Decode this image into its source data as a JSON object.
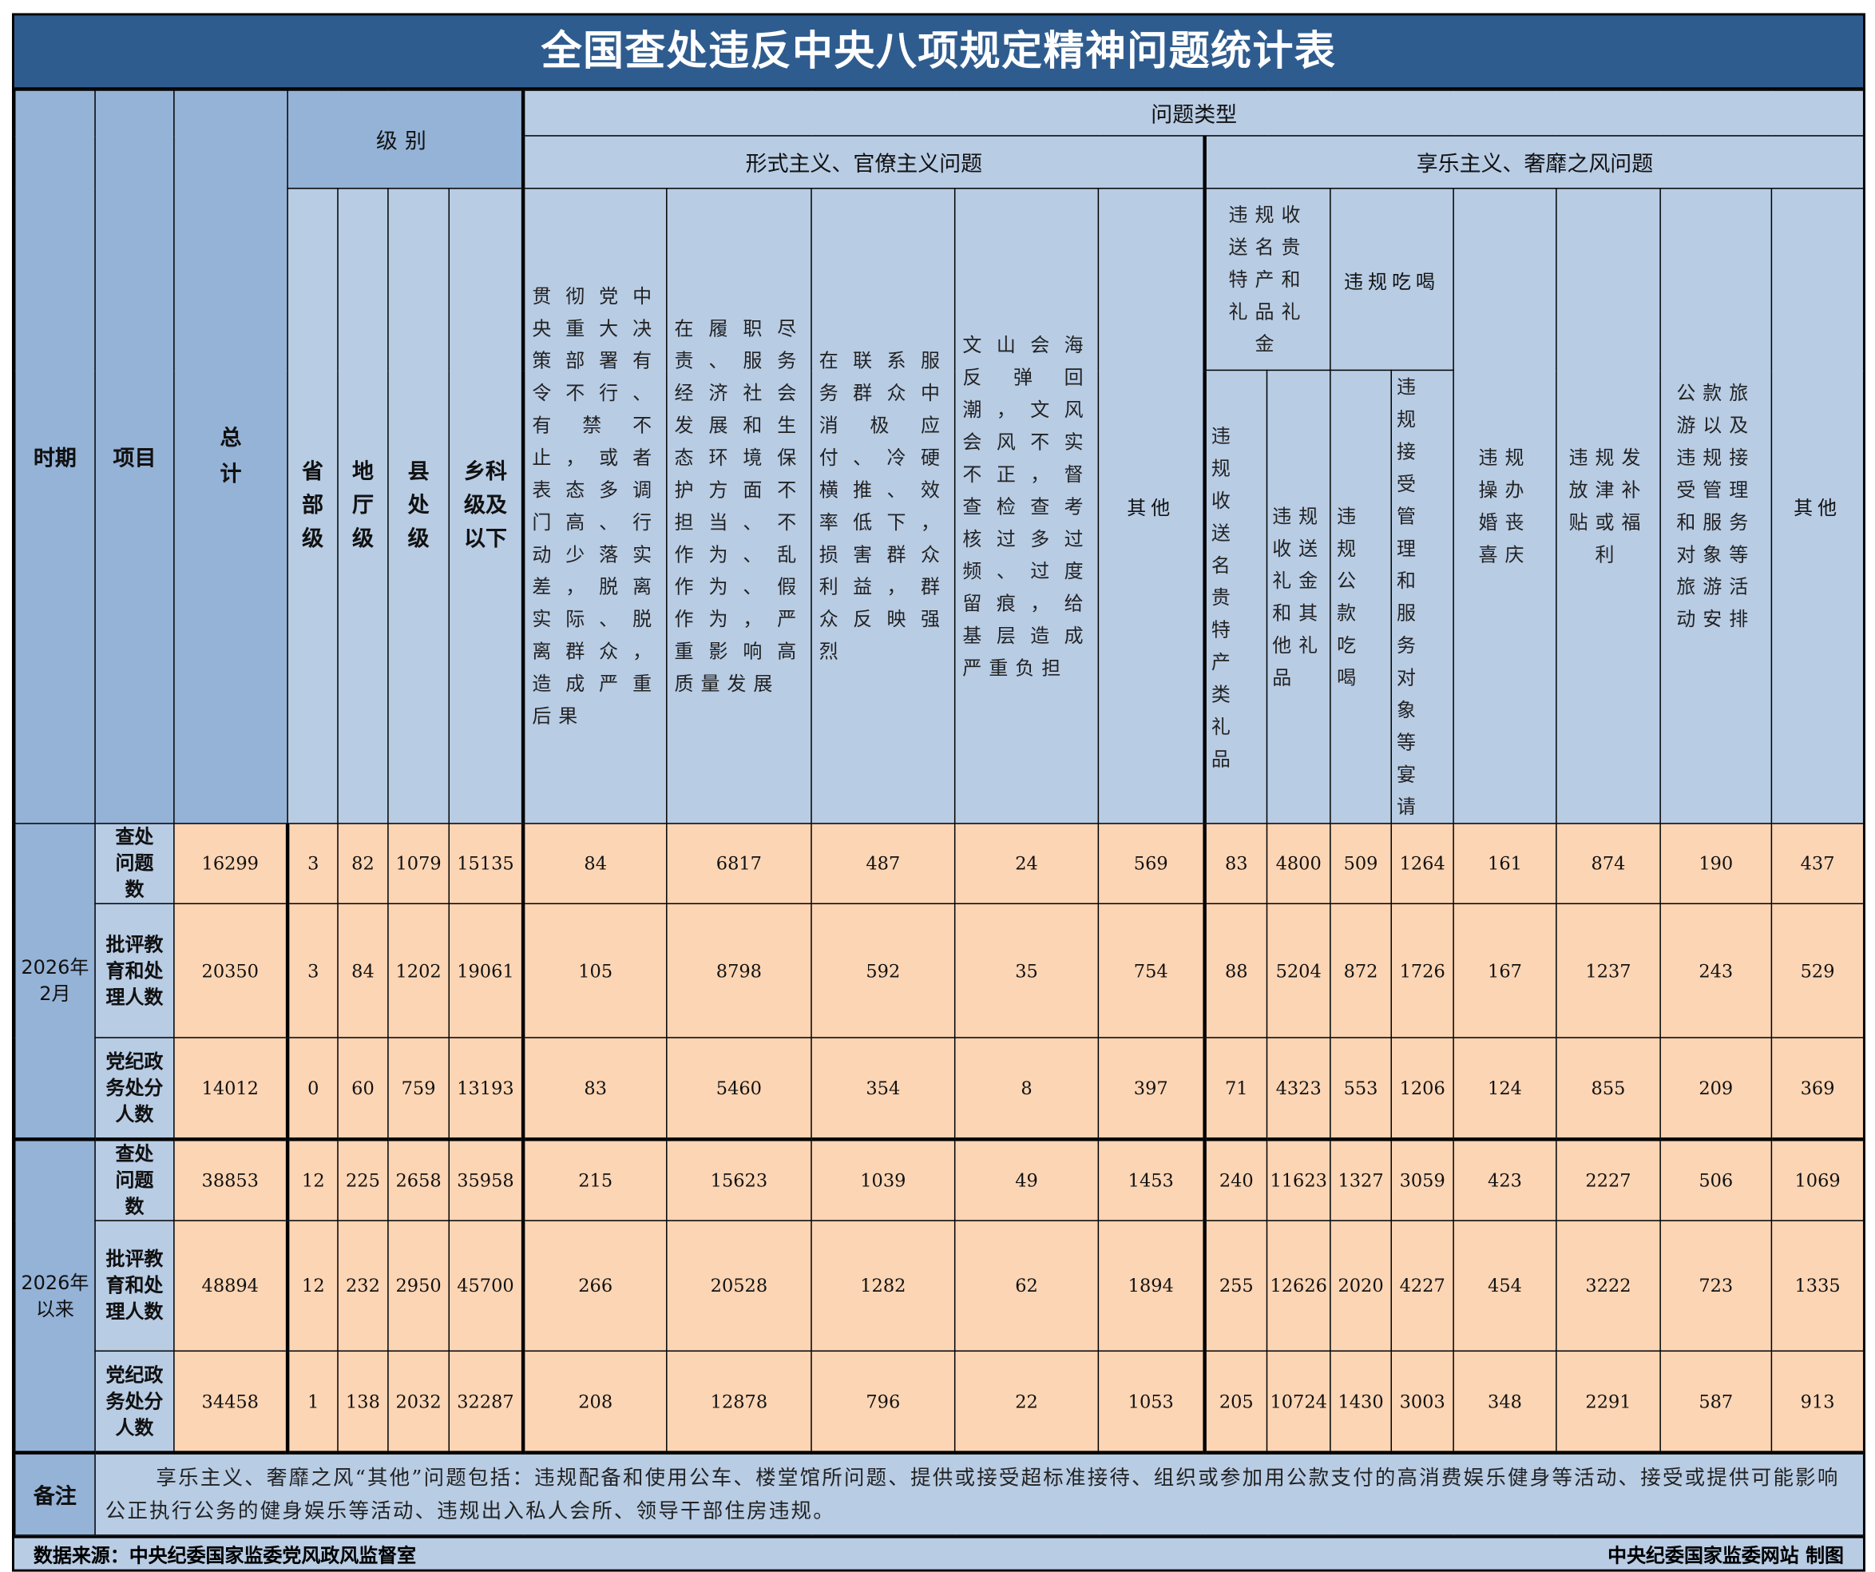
{
  "title": "全国查处违反中央八项规定精神问题统计表",
  "headers": {
    "period": "时期",
    "item": "项目",
    "total": "总计",
    "level": "级别",
    "problem_type": "问题类型",
    "levels": [
      "省部级",
      "地厅级",
      "县处级",
      "乡科级及以下"
    ],
    "formalism": "形式主义、官僚主义问题",
    "hedonism": "享乐主义、奢靡之风问题",
    "formalism_cols": [
      "贯彻党中央重大决策部署有令不行、有禁不止，或者表态多调门高、行动少落实差，脱离实际、脱离群众，造成严重后果",
      "在履职尽责、服务经济社会发展和生态环境保护方面不担当、不作为、乱作为、假作为，严重影响高质量发展",
      "在联系服务群众中消极应付、冷硬横推、效率低下，损害群众利益，群众反映强烈",
      "文山会海反弹回潮，文风会风不实不正，督查检查考核过多过频、过度留痕，给基层造成严重负担",
      "其他"
    ],
    "gift_group": "违规收送名贵特产和礼品礼金",
    "gift_cols": [
      "违规收送名贵特产类礼品",
      "违规收送礼金和其他礼品"
    ],
    "dining_group": "违规吃喝",
    "dining_cols": [
      "违规公款吃喝",
      "违规接受管理和服务对象等宴请"
    ],
    "hedonism_cols": [
      "违规操办婚丧喜庆",
      "违规发放津补贴或福利",
      "公款旅游以及违规接受管理和服务对象等旅游活动安排",
      "其他"
    ]
  },
  "groups": [
    {
      "period": "2026年2月",
      "rows": [
        {
          "item": "查处问题数",
          "values": [
            "16299",
            "3",
            "82",
            "1079",
            "15135",
            "84",
            "6817",
            "487",
            "24",
            "569",
            "83",
            "4800",
            "509",
            "1264",
            "161",
            "874",
            "190",
            "437"
          ]
        },
        {
          "item": "批评教育和处理人数",
          "values": [
            "20350",
            "3",
            "84",
            "1202",
            "19061",
            "105",
            "8798",
            "592",
            "35",
            "754",
            "88",
            "5204",
            "872",
            "1726",
            "167",
            "1237",
            "243",
            "529"
          ]
        },
        {
          "item": "党纪政务处分人数",
          "values": [
            "14012",
            "0",
            "60",
            "759",
            "13193",
            "83",
            "5460",
            "354",
            "8",
            "397",
            "71",
            "4323",
            "553",
            "1206",
            "124",
            "855",
            "209",
            "369"
          ]
        }
      ]
    },
    {
      "period": "2026年以来",
      "rows": [
        {
          "item": "查处问题数",
          "values": [
            "38853",
            "12",
            "225",
            "2658",
            "35958",
            "215",
            "15623",
            "1039",
            "49",
            "1453",
            "240",
            "11623",
            "1327",
            "3059",
            "423",
            "2227",
            "506",
            "1069"
          ]
        },
        {
          "item": "批评教育和处理人数",
          "values": [
            "48894",
            "12",
            "232",
            "2950",
            "45700",
            "266",
            "20528",
            "1282",
            "62",
            "1894",
            "255",
            "12626",
            "2020",
            "4227",
            "454",
            "3222",
            "723",
            "1335"
          ]
        },
        {
          "item": "党纪政务处分人数",
          "values": [
            "34458",
            "1",
            "138",
            "2032",
            "32287",
            "208",
            "12878",
            "796",
            "22",
            "1053",
            "205",
            "10724",
            "1430",
            "3003",
            "348",
            "2291",
            "587",
            "913"
          ]
        }
      ]
    }
  ],
  "note": {
    "label": "备注",
    "text": "享乐主义、奢靡之风“其他”问题包括：违规配备和使用公车、楼堂馆所问题、提供或接受超标准接待、组织或参加用公款支付的高消费娱乐健身等活动、接受或提供可能影响公正执行公务的健身娱乐等活动、违规出入私人会所、领导干部住房违规。"
  },
  "footer": {
    "source": "数据来源：中央纪委国家监委党风政风监督室",
    "maker": "中央纪委国家监委网站 制图"
  },
  "colors": {
    "title_bg": "#2f5c8f",
    "header_bg": "#b8cce4",
    "dark_header_bg": "#95b3d7",
    "data_bg": "#fcd5b4"
  }
}
